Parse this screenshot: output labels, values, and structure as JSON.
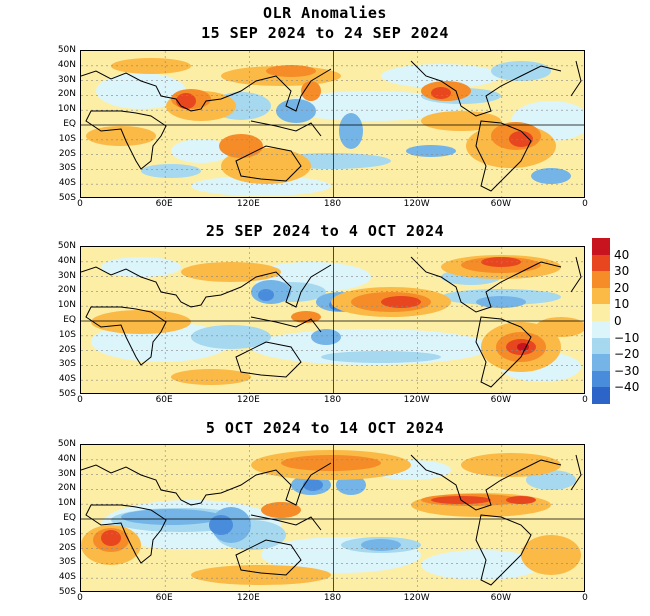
{
  "title": "OLR Anomalies",
  "panels": [
    {
      "period": "15 SEP 2024 to 24 SEP 2024"
    },
    {
      "period": "25 SEP 2024 to 4 OCT 2024"
    },
    {
      "period": "5 OCT 2024 to 14 OCT 2024"
    }
  ],
  "lat_labels": [
    "50N",
    "40N",
    "30N",
    "20N",
    "10N",
    "EQ",
    "10S",
    "20S",
    "30S",
    "40S",
    "50S"
  ],
  "lon_labels": [
    "0",
    "60E",
    "120E",
    "180",
    "120W",
    "60W",
    "0"
  ],
  "colorbar": {
    "labels": [
      "40",
      "30",
      "20",
      "10",
      "0",
      "−10",
      "−20",
      "−30",
      "−40"
    ],
    "colors": [
      "#c8141e",
      "#e8461e",
      "#f58c28",
      "#fbb946",
      "#fdeea6",
      "#dcf5fa",
      "#a6d8ef",
      "#74b4e6",
      "#4a8cdc",
      "#2c64c8"
    ]
  },
  "colors": {
    "pos_strong": "#c8141e",
    "pos_mid": "#e8461e",
    "pos_light": "#f58c28",
    "pos_faint": "#fbb946",
    "neutral_pos": "#fdeea6",
    "neutral_neg": "#dcf5fa",
    "neg_faint": "#a6d8ef",
    "neg_light": "#74b4e6",
    "neg_mid": "#4a8cdc",
    "neg_strong": "#2c64c8"
  }
}
